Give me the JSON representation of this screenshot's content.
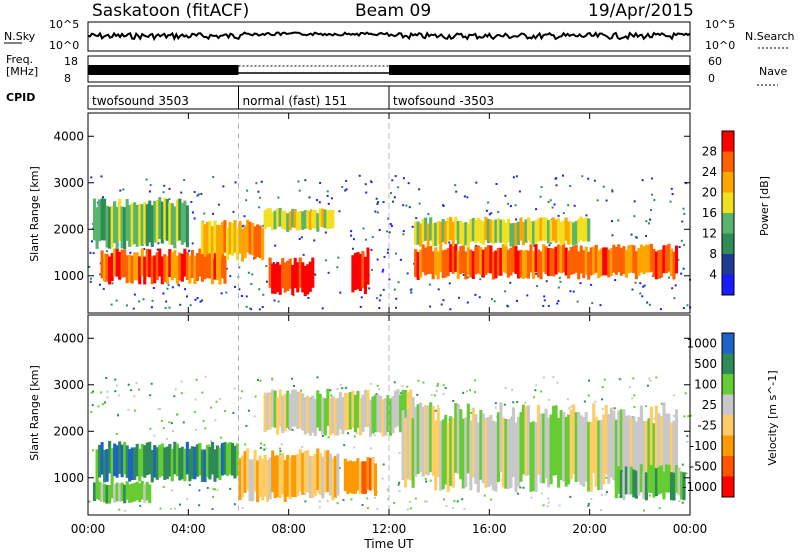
{
  "header": {
    "station": "Saskatoon (fitACF)",
    "beam": "Beam 09",
    "date": "19/Apr/2015"
  },
  "panel_labels": {
    "nsky": "N.Sky",
    "nsearch": "N.Search",
    "freq_line1": "Freq.",
    "freq_line2": "[MHz]",
    "nave": "Nave",
    "cpid": "CPID",
    "y_hi_exp": "10^5",
    "y_lo_exp": "10^0",
    "freq_hi": "18",
    "freq_lo": "8",
    "nave_hi": "60",
    "nave_lo": "0"
  },
  "cpid_segments": [
    {
      "label": "twofsound 3503",
      "start_hour": 0,
      "end_hour": 6
    },
    {
      "label": "normal (fast) 151",
      "start_hour": 6,
      "end_hour": 12
    },
    {
      "label": "twofsound -3503",
      "start_hour": 12,
      "end_hour": 24
    }
  ],
  "colors": {
    "power": [
      "#1a1aff",
      "#1e3c96",
      "#2e8b57",
      "#5ab46e",
      "#f0e020",
      "#ffa500",
      "#ff6000",
      "#ff0000"
    ],
    "velocity": [
      "#ff0000",
      "#ff5500",
      "#ff9900",
      "#ffcc66",
      "#c8c8c8",
      "#66cc33",
      "#2e8b57",
      "#1e64c8"
    ]
  },
  "chart_data": [
    {
      "type": "heatmap",
      "name": "power",
      "ylabel": "Slant Range [km]",
      "colorbar_label": "Power [dB]",
      "colorbar_ticks": [
        "28",
        "24",
        "20",
        "16",
        "12",
        "8",
        "4"
      ],
      "ylim": [
        200,
        4500
      ],
      "y_ticks": [
        1000,
        2000,
        3000,
        4000
      ],
      "x_ticks": [
        "00:00",
        "04:00",
        "08:00",
        "12:00",
        "16:00",
        "20:00",
        "00:00"
      ],
      "xlim": [
        0,
        24
      ],
      "bands": [
        {
          "t0": 0.5,
          "t1": 5.5,
          "r0": 900,
          "r1": 1500,
          "level": 6
        },
        {
          "t0": 4.5,
          "t1": 7.0,
          "r0": 1400,
          "r1": 2100,
          "level": 5
        },
        {
          "t0": 7.0,
          "t1": 9.8,
          "r0": 2000,
          "r1": 2400,
          "level": 4
        },
        {
          "t0": 7.2,
          "t1": 9.0,
          "r0": 650,
          "r1": 1300,
          "level": 7
        },
        {
          "t0": 10.5,
          "t1": 11.2,
          "r0": 700,
          "r1": 1500,
          "level": 7
        },
        {
          "t0": 13.0,
          "t1": 23.5,
          "r0": 1000,
          "r1": 1600,
          "level": 6
        },
        {
          "t0": 13.0,
          "t1": 20.0,
          "r0": 1700,
          "r1": 2200,
          "level": 4
        },
        {
          "t0": 0.2,
          "t1": 4.0,
          "r0": 1700,
          "r1": 2600,
          "level": 3
        }
      ]
    },
    {
      "type": "heatmap",
      "name": "velocity",
      "ylabel": "Slant Range [km]",
      "xlabel": "Time UT",
      "colorbar_label": "Velocity [m s^-1]",
      "colorbar_ticks": [
        "1000",
        "500",
        "100",
        "25",
        "-25",
        "-100",
        "-500",
        "-1000"
      ],
      "ylim": [
        200,
        4500
      ],
      "y_ticks": [
        1000,
        2000,
        3000,
        4000
      ],
      "x_ticks": [
        "00:00",
        "04:00",
        "08:00",
        "12:00",
        "16:00",
        "20:00",
        "00:00"
      ],
      "xlim": [
        0,
        24
      ],
      "bands": [
        {
          "t0": 0.3,
          "t1": 6.0,
          "r0": 1000,
          "r1": 1700,
          "level": 6
        },
        {
          "t0": 0.2,
          "t1": 2.5,
          "r0": 500,
          "r1": 900,
          "level": 5
        },
        {
          "t0": 6.0,
          "t1": 10.0,
          "r0": 600,
          "r1": 1500,
          "level": 3
        },
        {
          "t0": 7.0,
          "t1": 13.0,
          "r0": 2000,
          "r1": 2800,
          "level": 4
        },
        {
          "t0": 10.2,
          "t1": 11.5,
          "r0": 700,
          "r1": 1400,
          "level": 2
        },
        {
          "t0": 12.5,
          "t1": 23.5,
          "r0": 900,
          "r1": 2400,
          "level": 4
        },
        {
          "t0": 21.0,
          "t1": 23.8,
          "r0": 600,
          "r1": 1200,
          "level": 5
        }
      ]
    }
  ]
}
